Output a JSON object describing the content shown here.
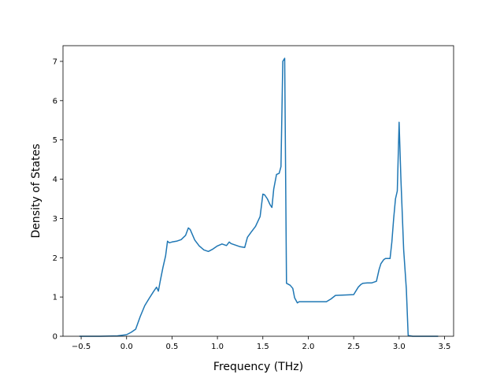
{
  "chart_data": {
    "type": "line",
    "title": "",
    "xlabel": "Frequency (THz)",
    "ylabel": "Density of States",
    "xlim": [
      -0.7,
      3.6
    ],
    "ylim": [
      0,
      7.4
    ],
    "grid": false,
    "line_color": "#1f77b4",
    "xticks": [
      -0.5,
      0.0,
      0.5,
      1.0,
      1.5,
      2.0,
      2.5,
      3.0,
      3.5
    ],
    "xtick_labels": [
      "−0.5",
      "0.0",
      "0.5",
      "1.0",
      "1.5",
      "2.0",
      "2.5",
      "3.0",
      "3.5"
    ],
    "yticks": [
      0,
      1,
      2,
      3,
      4,
      5,
      6,
      7
    ],
    "ytick_labels": [
      "0",
      "1",
      "2",
      "3",
      "4",
      "5",
      "6",
      "7"
    ],
    "series": [
      {
        "x": [
          -0.52,
          -0.3,
          -0.1,
          0.0,
          0.05,
          0.1,
          0.15,
          0.2,
          0.25,
          0.3,
          0.33,
          0.35,
          0.37,
          0.4,
          0.43,
          0.45,
          0.47,
          0.5,
          0.55,
          0.6,
          0.65,
          0.68,
          0.7,
          0.75,
          0.8,
          0.85,
          0.9,
          0.95,
          1.0,
          1.05,
          1.1,
          1.13,
          1.15,
          1.2,
          1.25,
          1.3,
          1.33,
          1.37,
          1.42,
          1.47,
          1.5,
          1.52,
          1.55,
          1.58,
          1.6,
          1.62,
          1.65,
          1.68,
          1.7,
          1.72,
          1.74,
          1.76,
          1.8,
          1.83,
          1.85,
          1.88,
          1.9,
          1.95,
          2.0,
          2.1,
          2.2,
          2.25,
          2.3,
          2.4,
          2.5,
          2.55,
          2.58,
          2.6,
          2.65,
          2.7,
          2.75,
          2.78,
          2.8,
          2.83,
          2.85,
          2.9,
          2.92,
          2.94,
          2.96,
          2.98,
          3.0,
          3.02,
          3.05,
          3.08,
          3.1,
          3.15,
          3.2,
          3.43
        ],
        "y": [
          0.0,
          0.0,
          0.01,
          0.04,
          0.1,
          0.18,
          0.5,
          0.78,
          0.97,
          1.15,
          1.25,
          1.15,
          1.4,
          1.75,
          2.05,
          2.42,
          2.38,
          2.4,
          2.42,
          2.46,
          2.57,
          2.76,
          2.72,
          2.45,
          2.3,
          2.2,
          2.16,
          2.22,
          2.3,
          2.35,
          2.31,
          2.4,
          2.36,
          2.32,
          2.28,
          2.26,
          2.52,
          2.65,
          2.8,
          3.05,
          3.62,
          3.6,
          3.5,
          3.35,
          3.28,
          3.75,
          4.12,
          4.15,
          4.32,
          7.0,
          7.08,
          1.35,
          1.3,
          1.22,
          0.98,
          0.85,
          0.88,
          0.88,
          0.88,
          0.88,
          0.88,
          0.95,
          1.04,
          1.05,
          1.06,
          1.25,
          1.32,
          1.35,
          1.36,
          1.36,
          1.4,
          1.7,
          1.85,
          1.95,
          1.98,
          1.98,
          2.4,
          3.0,
          3.5,
          3.7,
          5.45,
          4.0,
          2.2,
          1.2,
          0.02,
          0.0,
          0.0,
          0.0
        ]
      }
    ]
  }
}
